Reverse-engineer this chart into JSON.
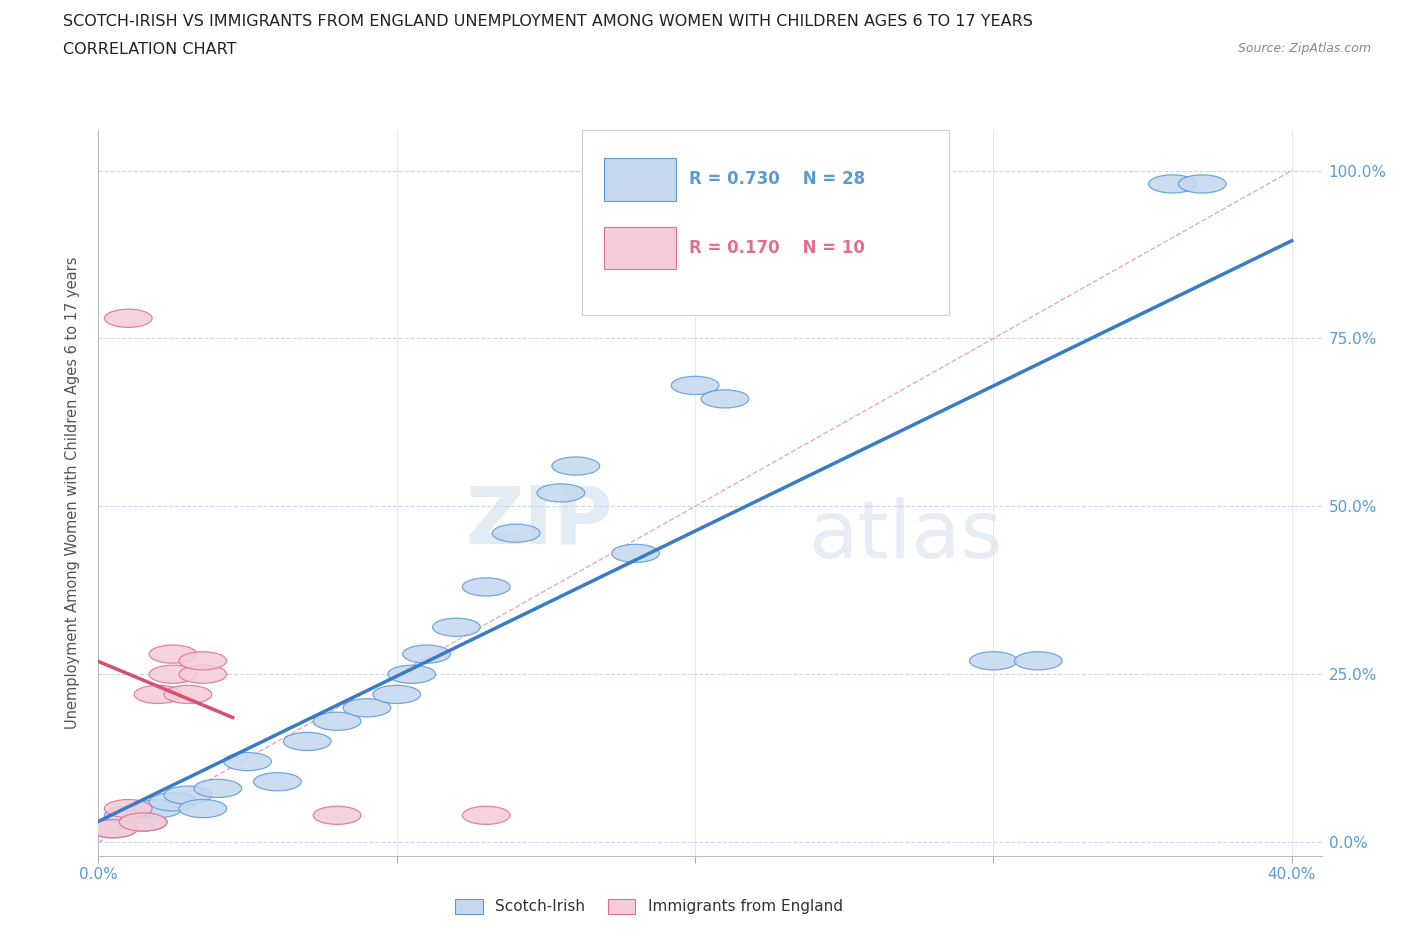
{
  "title_line1": "SCOTCH-IRISH VS IMMIGRANTS FROM ENGLAND UNEMPLOYMENT AMONG WOMEN WITH CHILDREN AGES 6 TO 17 YEARS",
  "title_line2": "CORRELATION CHART",
  "source": "Source: ZipAtlas.com",
  "ylabel_label": "Unemployment Among Women with Children Ages 6 to 17 years",
  "watermark_zip": "ZIP",
  "watermark_atlas": "atlas",
  "legend_blue_r": "R = 0.730",
  "legend_blue_n": "N = 28",
  "legend_pink_r": "R = 0.170",
  "legend_pink_n": "N = 10",
  "legend_label1": "Scotch-Irish",
  "legend_label2": "Immigrants from England",
  "blue_fill": "#c5d8ef",
  "blue_edge": "#5b9bd5",
  "pink_fill": "#f4ccd8",
  "pink_edge": "#e07090",
  "regression_blue": "#3a7cc4",
  "regression_pink": "#d45070",
  "diagonal_color": "#e8a0b0",
  "title_color": "#222222",
  "tick_color": "#5b9bd5",
  "grid_color": "#c8d4e8",
  "background_color": "#ffffff",
  "blue_x": [
    0.005,
    0.01,
    0.015,
    0.02,
    0.025,
    0.03,
    0.035,
    0.04,
    0.05,
    0.06,
    0.07,
    0.08,
    0.09,
    0.1,
    0.105,
    0.11,
    0.12,
    0.13,
    0.14,
    0.155,
    0.16,
    0.18,
    0.2,
    0.21,
    0.3,
    0.315,
    0.36,
    0.37
  ],
  "blue_y": [
    0.02,
    0.04,
    0.03,
    0.05,
    0.06,
    0.07,
    0.05,
    0.08,
    0.12,
    0.09,
    0.15,
    0.18,
    0.2,
    0.22,
    0.25,
    0.28,
    0.32,
    0.38,
    0.46,
    0.52,
    0.56,
    0.43,
    0.68,
    0.66,
    0.27,
    0.27,
    0.98,
    0.98
  ],
  "pink_x": [
    0.005,
    0.01,
    0.015,
    0.02,
    0.025,
    0.025,
    0.03,
    0.035,
    0.035,
    0.13
  ],
  "pink_y": [
    0.02,
    0.05,
    0.03,
    0.22,
    0.25,
    0.28,
    0.22,
    0.25,
    0.27,
    0.04
  ],
  "pink_outlier_x": [
    0.01
  ],
  "pink_outlier_y": [
    0.78
  ],
  "pink_bottom_x": [
    0.08
  ],
  "pink_bottom_y": [
    0.04
  ],
  "xlim": [
    0.0,
    0.41
  ],
  "ylim": [
    -0.02,
    1.06
  ],
  "x_ticks": [
    0.0,
    0.1,
    0.2,
    0.3,
    0.4
  ],
  "x_tick_labels": [
    "0.0%",
    "",
    "",
    "",
    "40.0%"
  ],
  "y_ticks": [
    0.0,
    0.25,
    0.5,
    0.75,
    1.0
  ],
  "y_tick_labels": [
    "0.0%",
    "25.0%",
    "50.0%",
    "75.0%",
    "100.0%"
  ]
}
